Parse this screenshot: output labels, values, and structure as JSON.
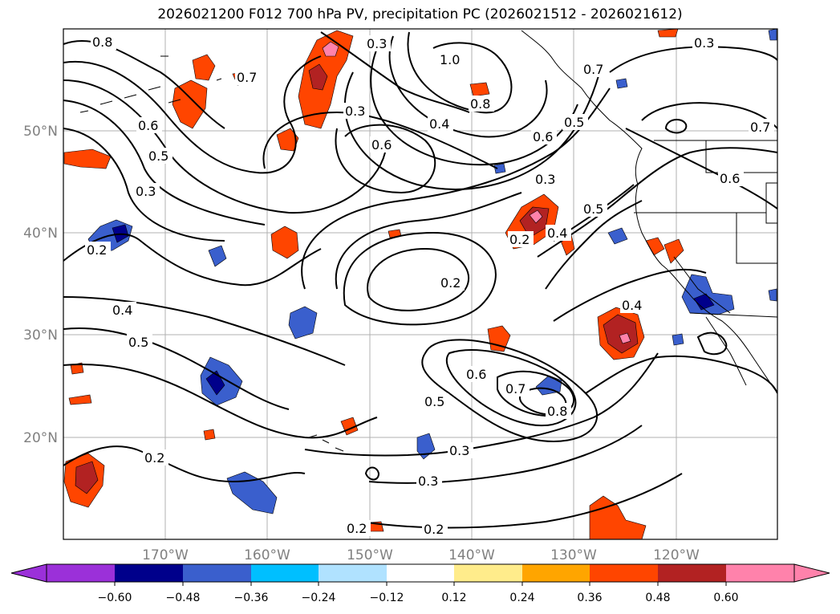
{
  "title": "2026021200 F012 700 hPa PV, precipitation PC (2026021512 - 2026021612)",
  "map": {
    "lon_labels": [
      "170°W",
      "160°W",
      "150°W",
      "140°W",
      "130°W",
      "120°W"
    ],
    "lat_labels": [
      "50°N",
      "40°N",
      "30°N",
      "20°N"
    ],
    "gridline_color": "#b0b0b0"
  },
  "colorbar": {
    "ticks": [
      "−0.60",
      "−0.48",
      "−0.36",
      "−0.24",
      "−0.12",
      "0.12",
      "0.24",
      "0.36",
      "0.48",
      "0.60"
    ],
    "colors": [
      "#9b30d9",
      "#00008b",
      "#3a5fcd",
      "#00bfff",
      "#b0e2ff",
      "#ffffff",
      "#ffec8b",
      "#ffa500",
      "#ff4500",
      "#b22222",
      "#ff82ab"
    ]
  },
  "contour_labels": [
    "0.8",
    "0.3",
    "1.0",
    "0.7",
    "0.3",
    "0.7",
    "0.6",
    "0.5",
    "0.3",
    "0.4",
    "0.8",
    "0.6",
    "0.5",
    "0.6",
    "0.7",
    "0.6",
    "0.3",
    "0.5",
    "0.3",
    "0.4",
    "0.2",
    "0.2",
    "0.2",
    "0.4",
    "0.5",
    "0.4",
    "0.6",
    "0.7",
    "0.5",
    "0.8",
    "0.3",
    "0.3",
    "0.2",
    "0.2",
    "0.2"
  ]
}
